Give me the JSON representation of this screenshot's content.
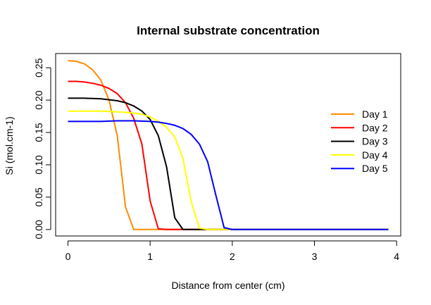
{
  "chart_data": {
    "type": "line",
    "title": "Internal substrate concentration",
    "xlabel": "Distance from center (cm)",
    "ylabel": "Si (mol.cm-1)",
    "xlim": [
      -0.15,
      4.05
    ],
    "ylim": [
      -0.01,
      0.272
    ],
    "xticks": [
      0,
      1,
      2,
      3,
      4
    ],
    "yticks": [
      0.0,
      0.05,
      0.1,
      0.15,
      0.2,
      0.25
    ],
    "ytick_labels": [
      "0.00",
      "0.05",
      "0.10",
      "0.15",
      "0.20",
      "0.25"
    ],
    "grid": false,
    "legend_position": "right",
    "series": [
      {
        "name": "Day 1",
        "color": "#FF8C00",
        "x": [
          0,
          0.1,
          0.2,
          0.3,
          0.4,
          0.5,
          0.6,
          0.7,
          0.8,
          0.9,
          1.0,
          1.5,
          2.0,
          2.5,
          3.0,
          3.5,
          3.9
        ],
        "y": [
          0.261,
          0.26,
          0.256,
          0.247,
          0.231,
          0.2,
          0.145,
          0.035,
          0.0,
          0.0,
          0.0,
          0.0,
          0.0,
          0.0,
          0.0,
          0.0,
          0.0
        ]
      },
      {
        "name": "Day 2",
        "color": "#FF0000",
        "x": [
          0,
          0.1,
          0.2,
          0.3,
          0.4,
          0.5,
          0.6,
          0.7,
          0.8,
          0.9,
          1.0,
          1.1,
          1.2,
          1.5,
          2.0,
          2.5,
          3.0,
          3.5,
          3.9
        ],
        "y": [
          0.229,
          0.229,
          0.228,
          0.226,
          0.223,
          0.218,
          0.21,
          0.196,
          0.172,
          0.132,
          0.044,
          0.001,
          0.0,
          0.0,
          0.0,
          0.0,
          0.0,
          0.0,
          0.0
        ]
      },
      {
        "name": "Day 3",
        "color": "#000000",
        "x": [
          0,
          0.2,
          0.4,
          0.6,
          0.7,
          0.8,
          0.9,
          1.0,
          1.1,
          1.2,
          1.3,
          1.4,
          1.5,
          2.0,
          2.5,
          3.0,
          3.5,
          3.9
        ],
        "y": [
          0.203,
          0.203,
          0.202,
          0.199,
          0.196,
          0.191,
          0.183,
          0.17,
          0.145,
          0.097,
          0.018,
          0.0,
          0.0,
          0.0,
          0.0,
          0.0,
          0.0,
          0.0
        ]
      },
      {
        "name": "Day 4",
        "color": "#FFFF00",
        "x": [
          0,
          0.2,
          0.4,
          0.6,
          0.8,
          0.9,
          1.0,
          1.1,
          1.2,
          1.3,
          1.4,
          1.5,
          1.6,
          1.7,
          2.0,
          2.5,
          3.0,
          3.5,
          3.9
        ],
        "y": [
          0.183,
          0.183,
          0.183,
          0.182,
          0.18,
          0.178,
          0.174,
          0.167,
          0.158,
          0.143,
          0.11,
          0.043,
          0.002,
          0.0,
          0.0,
          0.0,
          0.0,
          0.0,
          0.0
        ]
      },
      {
        "name": "Day 5",
        "color": "#0000FF",
        "x": [
          0,
          0.2,
          0.4,
          0.6,
          0.8,
          1.0,
          1.1,
          1.2,
          1.3,
          1.4,
          1.5,
          1.6,
          1.7,
          1.8,
          1.9,
          2.0,
          2.5,
          3.0,
          3.5,
          3.9
        ],
        "y": [
          0.167,
          0.167,
          0.167,
          0.168,
          0.168,
          0.167,
          0.166,
          0.164,
          0.161,
          0.156,
          0.147,
          0.132,
          0.105,
          0.053,
          0.003,
          0.0,
          0.0,
          0.0,
          0.0,
          0.0
        ]
      }
    ]
  }
}
